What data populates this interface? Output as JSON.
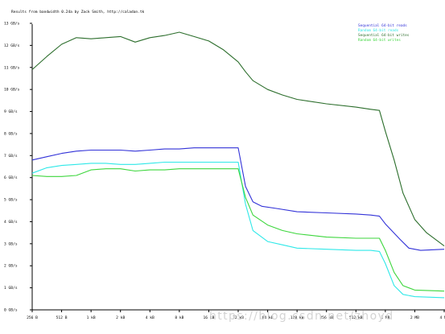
{
  "chart_data": {
    "type": "line",
    "title": "Results from bandwidth 0.24a by Zack Smith, http://caladan.tk",
    "x_tick_labels": [
      "256 B",
      "512 B",
      "1 kB",
      "2 kB",
      "4 kB",
      "8 kB",
      "16 kB",
      "32 kB",
      "64 kB",
      "128 kB",
      "256 kB",
      "512 kB",
      "1 MB",
      "2 MB",
      "4 MB"
    ],
    "y_tick_labels": [
      "0 GB/s",
      "1 GB/s",
      "2 GB/s",
      "3 GB/s",
      "4 GB/s",
      "5 GB/s",
      "6 GB/s",
      "7 GB/s",
      "8 GB/s",
      "9 GB/s",
      "10 GB/s",
      "11 GB/s",
      "12 GB/s",
      "13 GB/s"
    ],
    "ylim": [
      0,
      13
    ],
    "xlim": [
      0,
      14
    ],
    "legend_position": "top-right",
    "grid": false,
    "series": [
      {
        "name": "Sequential 64-bit reads",
        "color": "#3232d8",
        "points": [
          [
            0,
            6.8
          ],
          [
            0.5,
            6.95
          ],
          [
            1,
            7.1
          ],
          [
            1.5,
            7.2
          ],
          [
            2,
            7.25
          ],
          [
            2.5,
            7.25
          ],
          [
            3,
            7.25
          ],
          [
            3.5,
            7.2
          ],
          [
            4,
            7.25
          ],
          [
            4.5,
            7.3
          ],
          [
            5,
            7.3
          ],
          [
            5.5,
            7.35
          ],
          [
            6,
            7.35
          ],
          [
            6.5,
            7.35
          ],
          [
            7,
            7.35
          ],
          [
            7.25,
            5.6
          ],
          [
            7.5,
            4.9
          ],
          [
            7.8,
            4.7
          ],
          [
            8.3,
            4.6
          ],
          [
            9,
            4.45
          ],
          [
            10,
            4.4
          ],
          [
            11,
            4.35
          ],
          [
            11.5,
            4.3
          ],
          [
            11.8,
            4.25
          ],
          [
            12,
            3.9
          ],
          [
            12.5,
            3.2
          ],
          [
            12.8,
            2.8
          ],
          [
            13.2,
            2.7
          ],
          [
            14,
            2.75
          ]
        ]
      },
      {
        "name": "Random 64-bit reads",
        "color": "#2ee8e8",
        "points": [
          [
            0,
            6.2
          ],
          [
            0.5,
            6.45
          ],
          [
            1,
            6.55
          ],
          [
            1.5,
            6.6
          ],
          [
            2,
            6.65
          ],
          [
            2.5,
            6.65
          ],
          [
            3,
            6.6
          ],
          [
            3.5,
            6.6
          ],
          [
            4,
            6.65
          ],
          [
            4.5,
            6.7
          ],
          [
            5,
            6.7
          ],
          [
            5.5,
            6.7
          ],
          [
            6,
            6.7
          ],
          [
            6.5,
            6.7
          ],
          [
            7,
            6.7
          ],
          [
            7.25,
            4.8
          ],
          [
            7.5,
            3.6
          ],
          [
            8,
            3.1
          ],
          [
            8.5,
            2.95
          ],
          [
            9,
            2.8
          ],
          [
            10,
            2.75
          ],
          [
            11,
            2.7
          ],
          [
            11.5,
            2.7
          ],
          [
            11.8,
            2.65
          ],
          [
            12,
            2.1
          ],
          [
            12.3,
            1.1
          ],
          [
            12.6,
            0.7
          ],
          [
            13,
            0.6
          ],
          [
            14,
            0.55
          ]
        ]
      },
      {
        "name": "Sequential 64-bit writes",
        "color": "#2c6e2c",
        "points": [
          [
            0,
            10.9
          ],
          [
            0.5,
            11.5
          ],
          [
            1,
            12.05
          ],
          [
            1.5,
            12.35
          ],
          [
            2,
            12.3
          ],
          [
            2.5,
            12.35
          ],
          [
            3,
            12.4
          ],
          [
            3.5,
            12.15
          ],
          [
            4,
            12.35
          ],
          [
            4.5,
            12.45
          ],
          [
            5,
            12.6
          ],
          [
            5.5,
            12.4
          ],
          [
            6,
            12.2
          ],
          [
            6.5,
            11.8
          ],
          [
            7,
            11.25
          ],
          [
            7.25,
            10.8
          ],
          [
            7.5,
            10.4
          ],
          [
            8,
            10.0
          ],
          [
            8.5,
            9.75
          ],
          [
            9,
            9.55
          ],
          [
            10,
            9.35
          ],
          [
            11,
            9.2
          ],
          [
            11.5,
            9.1
          ],
          [
            11.8,
            9.05
          ],
          [
            12,
            8.1
          ],
          [
            12.3,
            6.8
          ],
          [
            12.6,
            5.3
          ],
          [
            13,
            4.1
          ],
          [
            13.4,
            3.5
          ],
          [
            14,
            2.9
          ]
        ]
      },
      {
        "name": "Random 64-bit writes",
        "color": "#3cd63c",
        "points": [
          [
            0,
            6.1
          ],
          [
            0.5,
            6.05
          ],
          [
            1,
            6.05
          ],
          [
            1.5,
            6.1
          ],
          [
            2,
            6.35
          ],
          [
            2.5,
            6.4
          ],
          [
            3,
            6.4
          ],
          [
            3.5,
            6.3
          ],
          [
            4,
            6.35
          ],
          [
            4.5,
            6.35
          ],
          [
            5,
            6.4
          ],
          [
            5.5,
            6.4
          ],
          [
            6,
            6.4
          ],
          [
            6.5,
            6.4
          ],
          [
            7,
            6.4
          ],
          [
            7.25,
            5.1
          ],
          [
            7.5,
            4.3
          ],
          [
            8,
            3.85
          ],
          [
            8.5,
            3.6
          ],
          [
            9,
            3.45
          ],
          [
            10,
            3.3
          ],
          [
            11,
            3.25
          ],
          [
            11.5,
            3.25
          ],
          [
            11.8,
            3.25
          ],
          [
            12,
            2.7
          ],
          [
            12.3,
            1.7
          ],
          [
            12.6,
            1.1
          ],
          [
            13,
            0.9
          ],
          [
            14,
            0.85
          ]
        ]
      }
    ]
  }
}
